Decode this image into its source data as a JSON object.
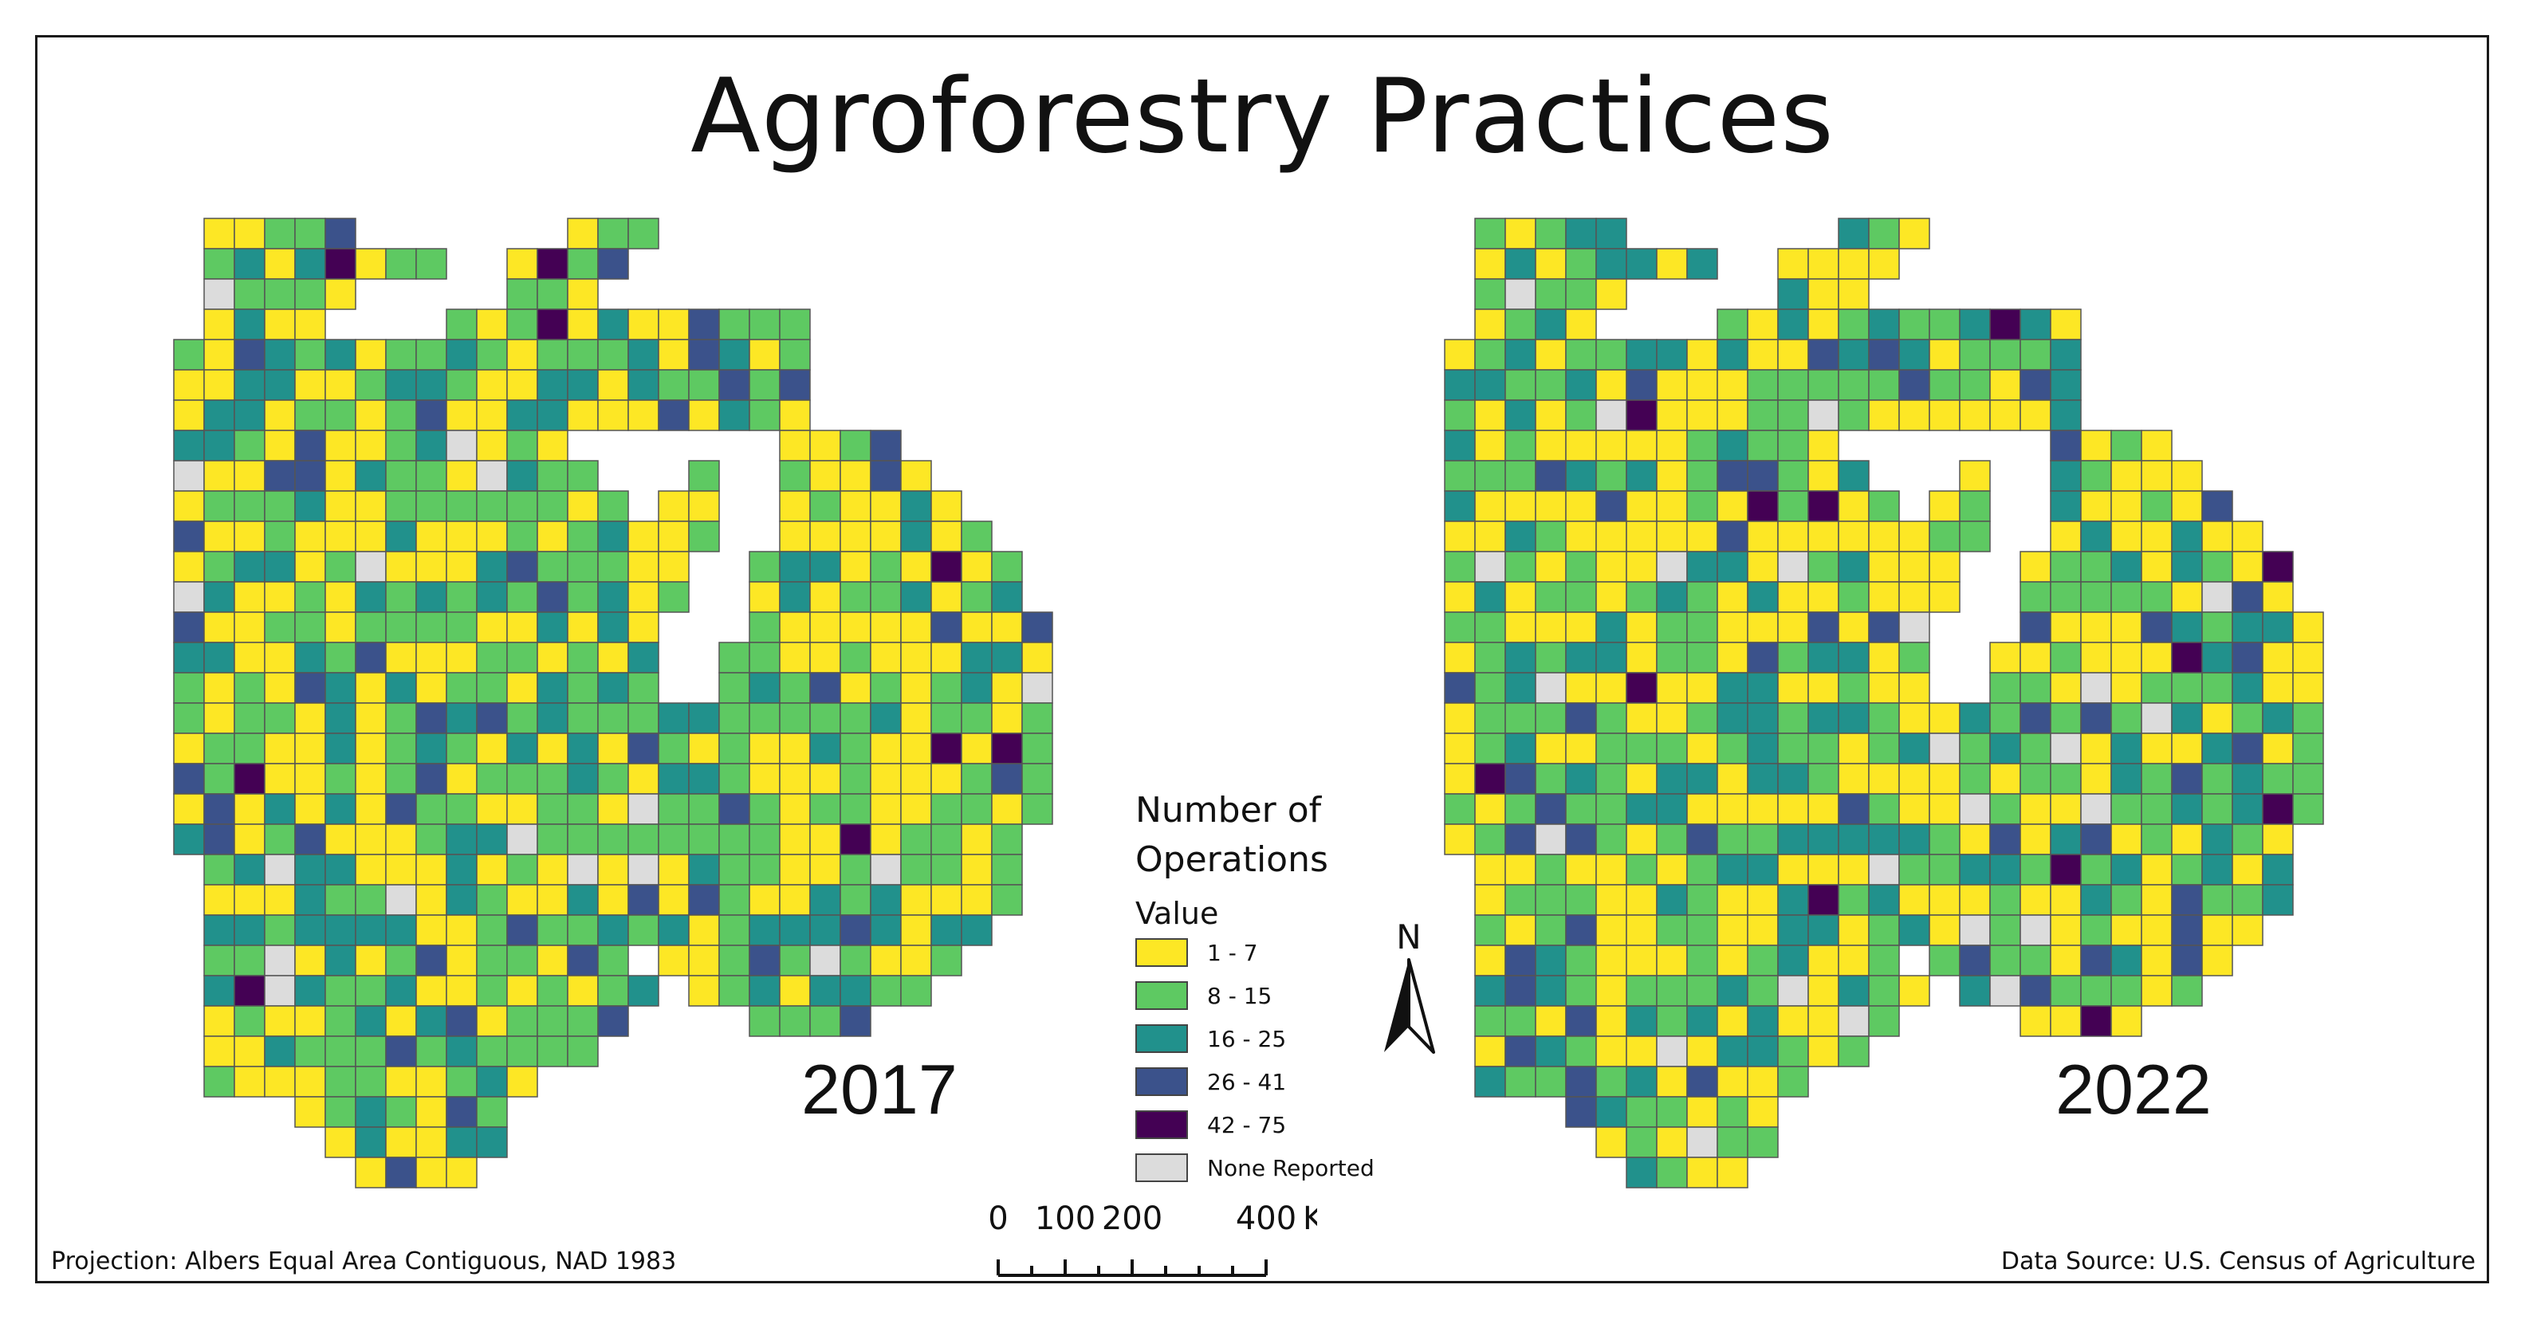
{
  "title": "Agroforestry Practices",
  "maps": [
    {
      "year": "2017"
    },
    {
      "year": "2022"
    }
  ],
  "legend": {
    "title_line1": "Number of",
    "title_line2": "Operations",
    "subtitle": "Value",
    "classes": [
      {
        "label": "1 - 7",
        "color": "#fde725"
      },
      {
        "label": "8 - 15",
        "color": "#5ec962"
      },
      {
        "label": "16 - 25",
        "color": "#21918c"
      },
      {
        "label": "26 - 41",
        "color": "#3b528b"
      },
      {
        "label": "42 - 75",
        "color": "#440154"
      },
      {
        "label": "None Reported",
        "color": "#dcdcdc"
      }
    ]
  },
  "north_arrow": {
    "label": "N",
    "icon": "north-arrow-icon"
  },
  "scale_bar": {
    "tick_0": "0",
    "tick_100": "100",
    "tick_200": "200",
    "tick_400": "400",
    "unit": "Kilometers"
  },
  "projection": "Projection: Albers Equal Area Contiguous, NAD 1983",
  "data_source": "Data Source: U.S. Census of Agriculture"
}
